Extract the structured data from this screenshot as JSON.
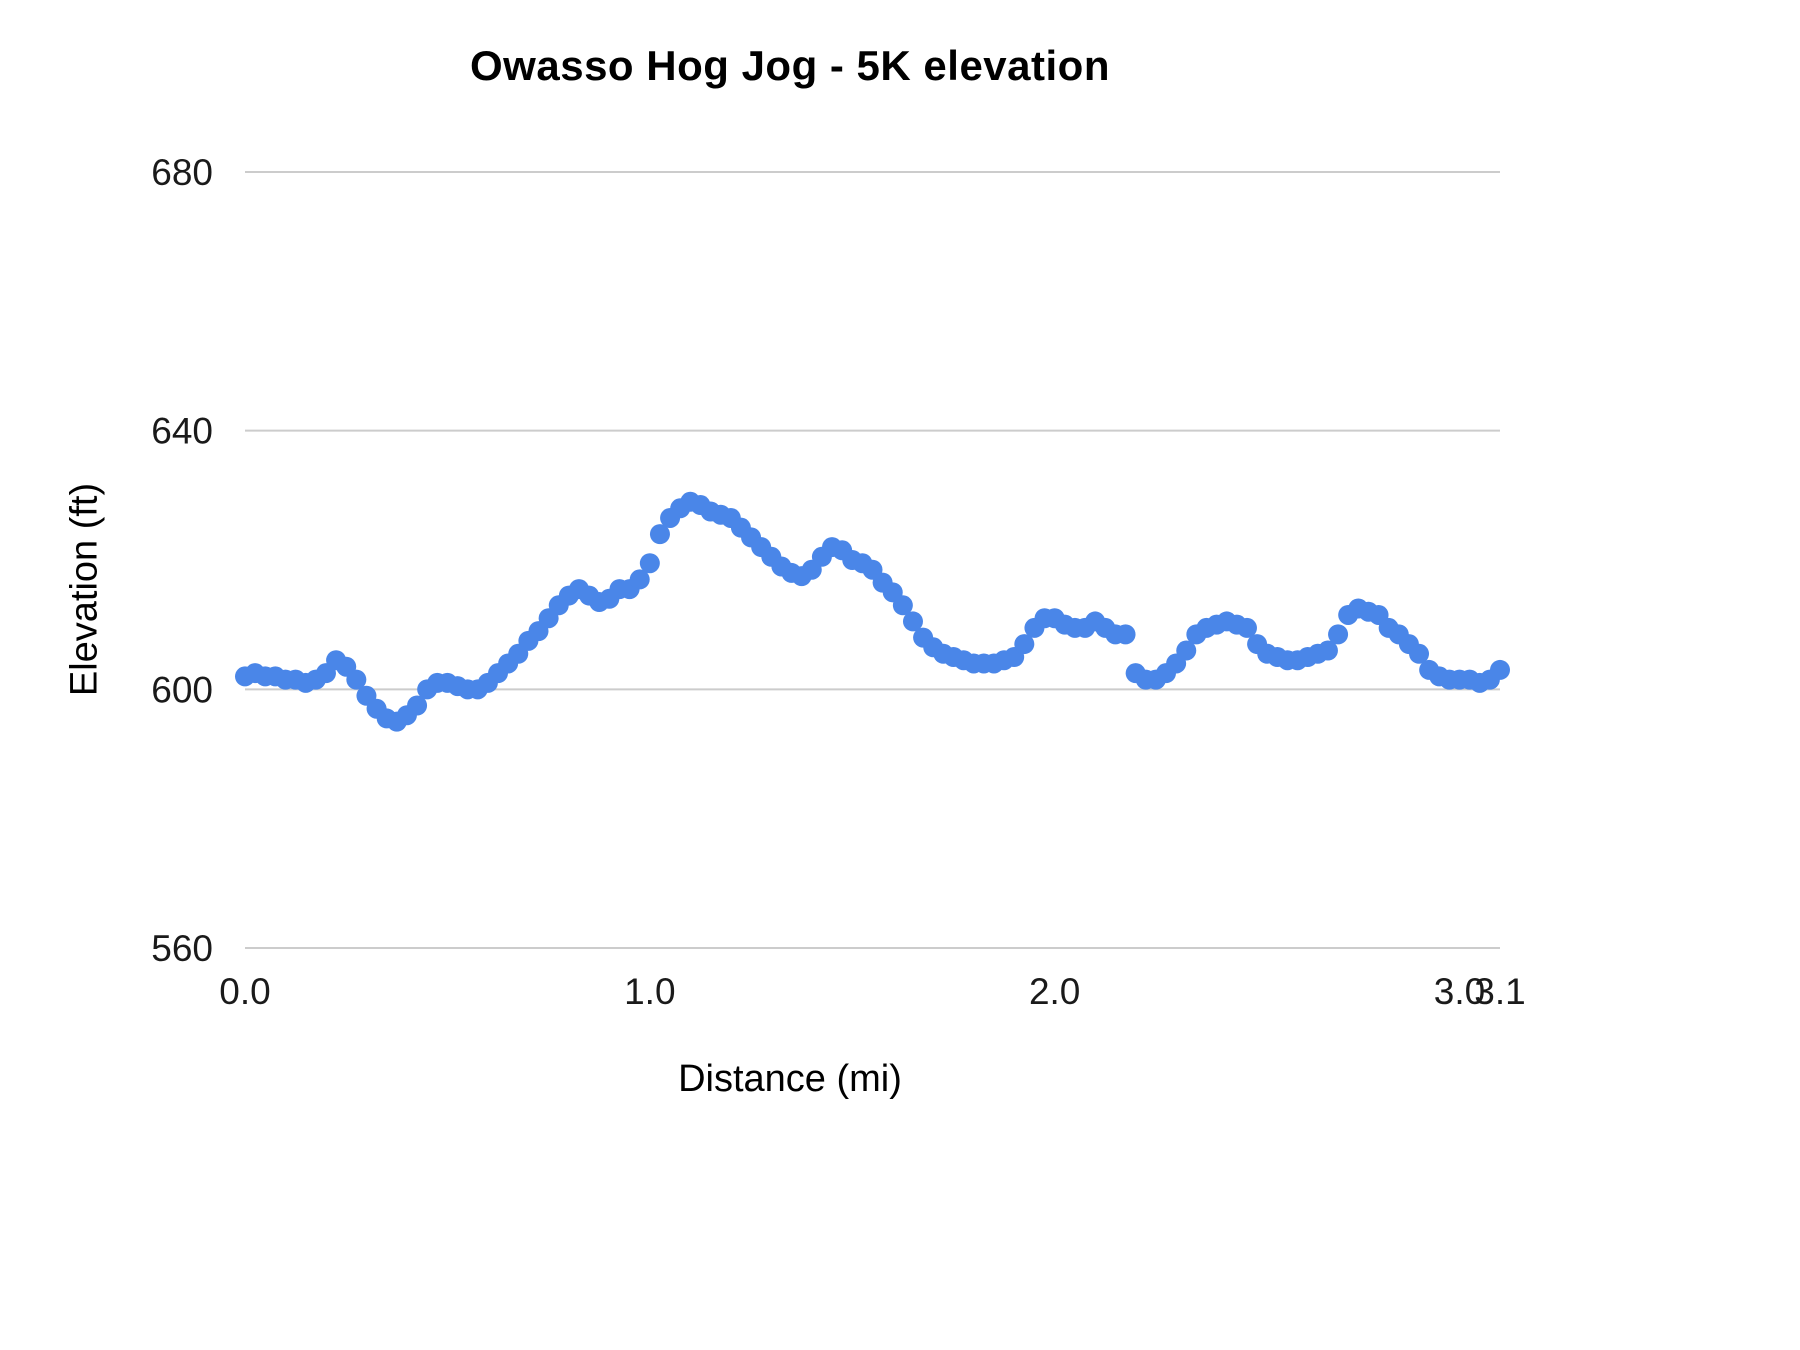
{
  "page": {
    "background": "#ffffff"
  },
  "chart_data": {
    "type": "scatter",
    "title": "Owasso Hog Jog - 5K elevation",
    "xlabel": "Distance (mi)",
    "ylabel": "Elevation (ft)",
    "x_start": 0.0,
    "x_step": 0.025,
    "xlim": [
      0.0,
      3.1
    ],
    "ylim": [
      560,
      680
    ],
    "xticks": [
      0.0,
      1.0,
      2.0,
      3.0,
      3.1
    ],
    "xtick_labels": [
      "0.0",
      "1.0",
      "2.0",
      "3.0",
      "3.1"
    ],
    "yticks": [
      560,
      600,
      640,
      680
    ],
    "ytick_labels": [
      "560",
      "600",
      "640",
      "680"
    ],
    "grid": "horizontal",
    "legend": "none",
    "point_color": "#4a86e8",
    "gridline_color": "#cccccc",
    "text_color": "#1a1a1a",
    "elevations": [
      602,
      602.5,
      602,
      602,
      601.5,
      601.5,
      601,
      601.5,
      602.5,
      604.5,
      603.5,
      601.5,
      599,
      597,
      595.5,
      595,
      596,
      597.5,
      600,
      601,
      601,
      600.5,
      600,
      600,
      601,
      602.5,
      604,
      605.5,
      607.5,
      609,
      611,
      613,
      614.5,
      615.5,
      614.5,
      613.5,
      614,
      615.5,
      615.5,
      617,
      619.5,
      624,
      626.5,
      628,
      629,
      628.5,
      627.5,
      627,
      626.5,
      625,
      623.5,
      622,
      620.5,
      619,
      618,
      617.5,
      618.5,
      620.5,
      622,
      621.5,
      620,
      619.5,
      618.5,
      616.5,
      615,
      613,
      610.5,
      608,
      606.5,
      605.5,
      605,
      604.5,
      604,
      604,
      604,
      604.5,
      605,
      607,
      609.5,
      611,
      611,
      610,
      609.5,
      609.5,
      610.5,
      609.5,
      608.5,
      608.5,
      602.5,
      601.5,
      601.5,
      602.5,
      604,
      606,
      608.5,
      609.5,
      610,
      610.5,
      610,
      609.5,
      607,
      605.5,
      605,
      604.5,
      604.5,
      605,
      605.5,
      606,
      608.5,
      611.5,
      612.5,
      612,
      611.5,
      609.5,
      608.5,
      607,
      605.5,
      603,
      602,
      601.5,
      601.5,
      601.5,
      601,
      601.5,
      603
    ]
  }
}
